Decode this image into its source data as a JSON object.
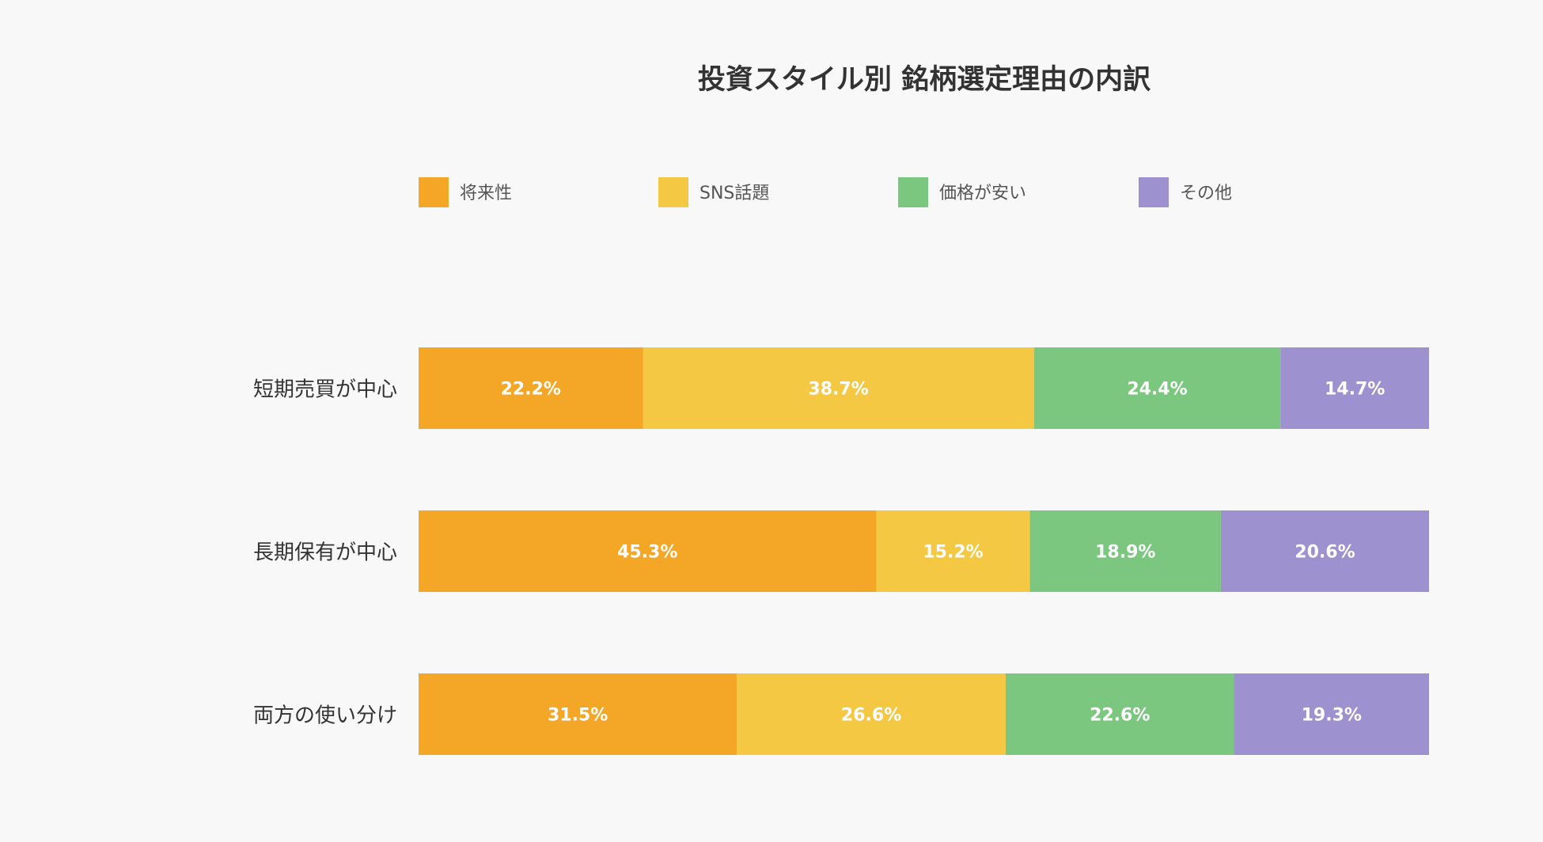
{
  "chart_data": {
    "type": "bar",
    "orientation": "horizontal",
    "stacked": true,
    "title": "投資スタイル別 銘柄選定理由の内訳",
    "categories": [
      "短期売買が中心",
      "長期保有が中心",
      "両方の使い分け"
    ],
    "series": [
      {
        "name": "将来性",
        "color": "#f4a626",
        "values": [
          22.2,
          45.3,
          31.5
        ],
        "labels": [
          "22.2%",
          "45.3%",
          "31.5%"
        ]
      },
      {
        "name": "SNS話題",
        "color": "#f4c842",
        "values": [
          38.7,
          15.2,
          26.6
        ],
        "labels": [
          "38.7%",
          "15.2%",
          "26.6%"
        ]
      },
      {
        "name": "価格が安い",
        "color": "#7cc77f",
        "values": [
          24.4,
          18.9,
          22.6
        ],
        "labels": [
          "24.4%",
          "18.9%",
          "22.6%"
        ]
      },
      {
        "name": "その他",
        "color": "#9d91d0",
        "values": [
          14.7,
          20.6,
          19.3
        ],
        "labels": [
          "14.7%",
          "20.6%",
          "19.3%"
        ]
      }
    ],
    "xlim": [
      0,
      100
    ],
    "unit": "%",
    "legend_position": "top",
    "grid": false
  }
}
